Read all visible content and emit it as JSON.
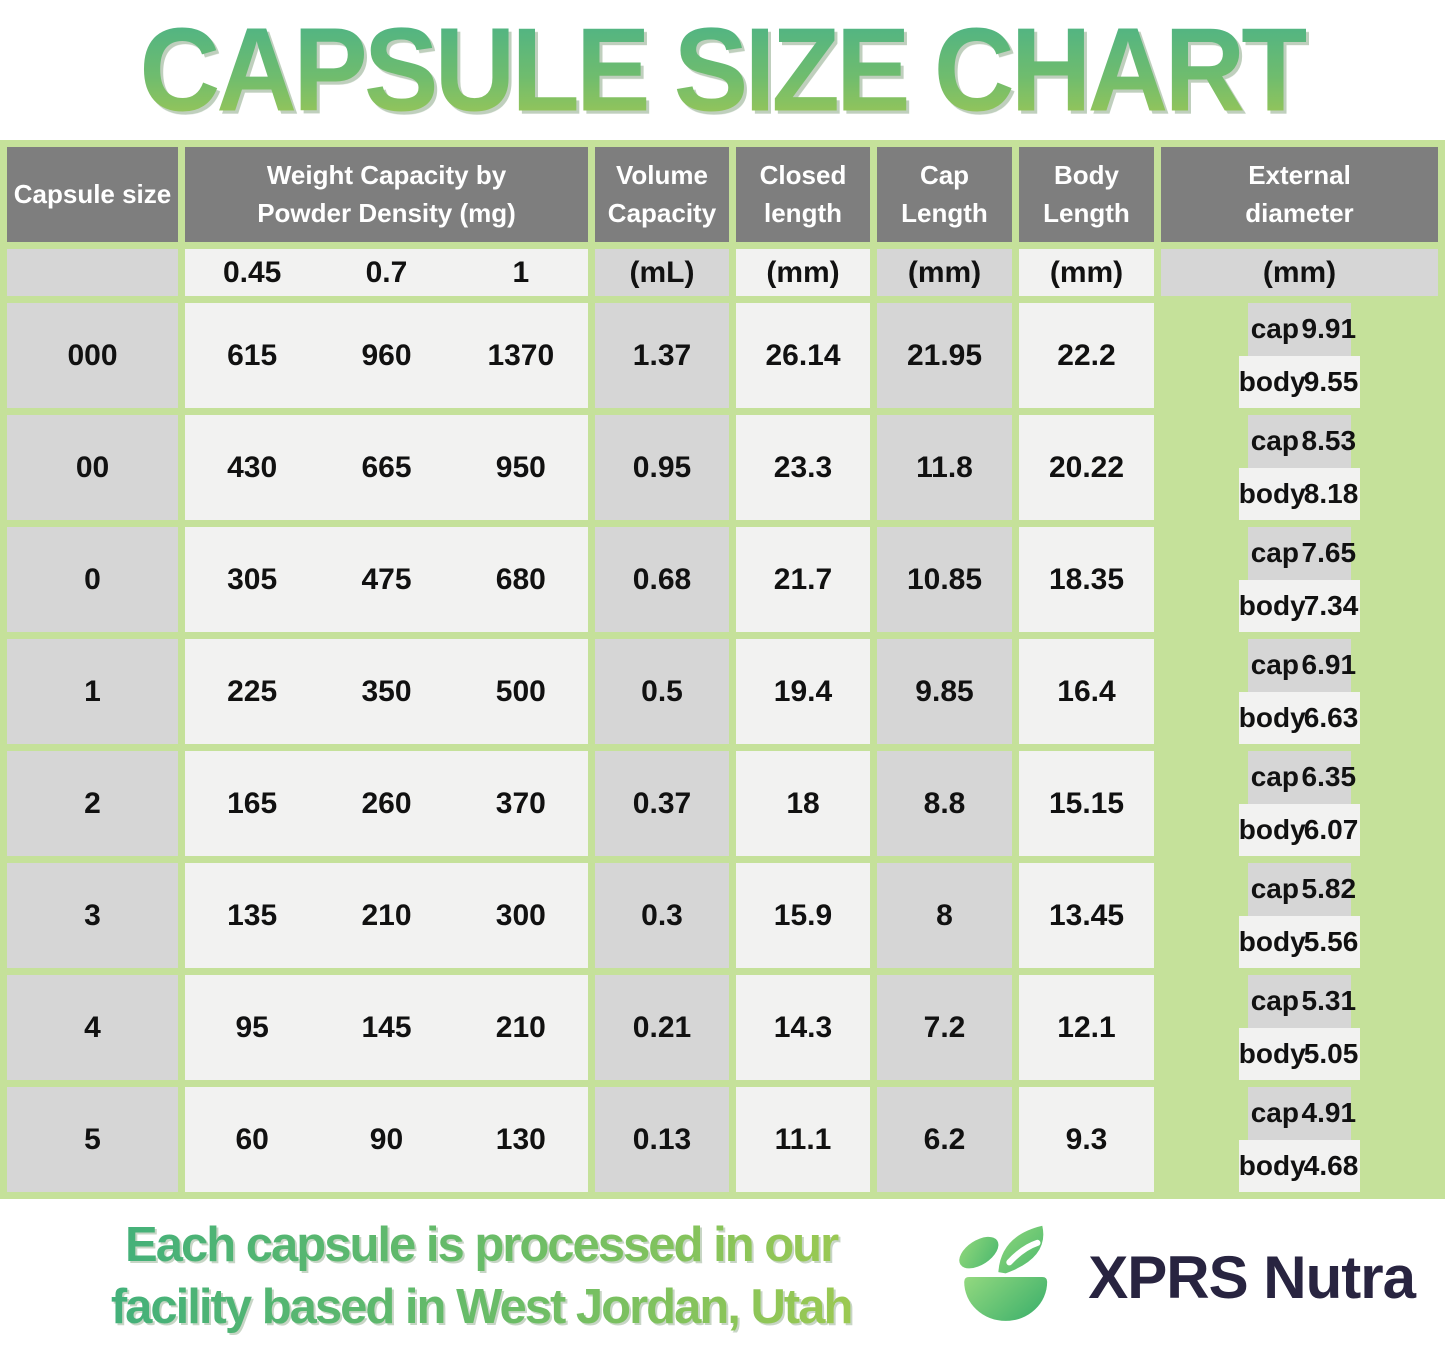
{
  "title": "CAPSULE SIZE CHART",
  "colors": {
    "border_green": "#c5e19a",
    "header_gray": "#7e7e7e",
    "cell_gray": "#d6d6d6",
    "cell_light": "#f2f2f1",
    "title_gradient_top": "#49b289",
    "title_gradient_bottom": "#a2c852",
    "brand_navy": "#282440",
    "leaf_green": "#4cb96e"
  },
  "table": {
    "headers": {
      "capsule_size": "Capsule size",
      "weight_capacity": "Weight Capacity by Powder Density (mg)",
      "volume_capacity": "Volume Capacity",
      "closed_length": "Closed length",
      "cap_length": "Cap Length",
      "body_length": "Body Length",
      "external_diameter": "External diameter"
    },
    "units": {
      "densities": [
        "0.45",
        "0.7",
        "1"
      ],
      "volume": "(mL)",
      "closed": "(mm)",
      "cap": "(mm)",
      "body": "(mm)",
      "external": "(mm)"
    },
    "sub_labels": {
      "cap": "cap",
      "body": "body"
    },
    "rows": [
      {
        "size": "000",
        "weights": [
          "615",
          "960",
          "1370"
        ],
        "volume": "1.37",
        "closed": "26.14",
        "cap_length": "21.95",
        "body_length": "22.2",
        "ext_cap": "9.91",
        "ext_body": "9.55"
      },
      {
        "size": "00",
        "weights": [
          "430",
          "665",
          "950"
        ],
        "volume": "0.95",
        "closed": "23.3",
        "cap_length": "11.8",
        "body_length": "20.22",
        "ext_cap": "8.53",
        "ext_body": "8.18"
      },
      {
        "size": "0",
        "weights": [
          "305",
          "475",
          "680"
        ],
        "volume": "0.68",
        "closed": "21.7",
        "cap_length": "10.85",
        "body_length": "18.35",
        "ext_cap": "7.65",
        "ext_body": "7.34"
      },
      {
        "size": "1",
        "weights": [
          "225",
          "350",
          "500"
        ],
        "volume": "0.5",
        "closed": "19.4",
        "cap_length": "9.85",
        "body_length": "16.4",
        "ext_cap": "6.91",
        "ext_body": "6.63"
      },
      {
        "size": "2",
        "weights": [
          "165",
          "260",
          "370"
        ],
        "volume": "0.37",
        "closed": "18",
        "cap_length": "8.8",
        "body_length": "15.15",
        "ext_cap": "6.35",
        "ext_body": "6.07"
      },
      {
        "size": "3",
        "weights": [
          "135",
          "210",
          "300"
        ],
        "volume": "0.3",
        "closed": "15.9",
        "cap_length": "8",
        "body_length": "13.45",
        "ext_cap": "5.82",
        "ext_body": "5.56"
      },
      {
        "size": "4",
        "weights": [
          "95",
          "145",
          "210"
        ],
        "volume": "0.21",
        "closed": "14.3",
        "cap_length": "7.2",
        "body_length": "12.1",
        "ext_cap": "5.31",
        "ext_body": "5.05"
      },
      {
        "size": "5",
        "weights": [
          "60",
          "90",
          "130"
        ],
        "volume": "0.13",
        "closed": "11.1",
        "cap_length": "6.2",
        "body_length": "9.3",
        "ext_cap": "4.91",
        "ext_body": "4.68"
      }
    ]
  },
  "footer": {
    "tagline_line1": "Each capsule is processed in our",
    "tagline_line2": "facility based in West Jordan, Utah",
    "brand": "XPRS Nutra"
  },
  "chart_data": {
    "type": "table",
    "title": "CAPSULE SIZE CHART",
    "columns": [
      "Capsule size",
      "Weight Capacity @ 0.45 density (mg)",
      "Weight Capacity @ 0.7 density (mg)",
      "Weight Capacity @ 1 density (mg)",
      "Volume Capacity (mL)",
      "Closed length (mm)",
      "Cap Length (mm)",
      "Body Length (mm)",
      "External diameter cap (mm)",
      "External diameter body (mm)"
    ],
    "rows": [
      [
        "000",
        615,
        960,
        1370,
        1.37,
        26.14,
        21.95,
        22.2,
        9.91,
        9.55
      ],
      [
        "00",
        430,
        665,
        950,
        0.95,
        23.3,
        11.8,
        20.22,
        8.53,
        8.18
      ],
      [
        "0",
        305,
        475,
        680,
        0.68,
        21.7,
        10.85,
        18.35,
        7.65,
        7.34
      ],
      [
        "1",
        225,
        350,
        500,
        0.5,
        19.4,
        9.85,
        16.4,
        6.91,
        6.63
      ],
      [
        "2",
        165,
        260,
        370,
        0.37,
        18,
        8.8,
        15.15,
        6.35,
        6.07
      ],
      [
        "3",
        135,
        210,
        300,
        0.3,
        15.9,
        8,
        13.45,
        5.82,
        5.56
      ],
      [
        "4",
        95,
        145,
        210,
        0.21,
        14.3,
        7.2,
        12.1,
        5.31,
        5.05
      ],
      [
        "5",
        60,
        90,
        130,
        0.13,
        11.1,
        6.2,
        9.3,
        4.91,
        4.68
      ]
    ]
  }
}
